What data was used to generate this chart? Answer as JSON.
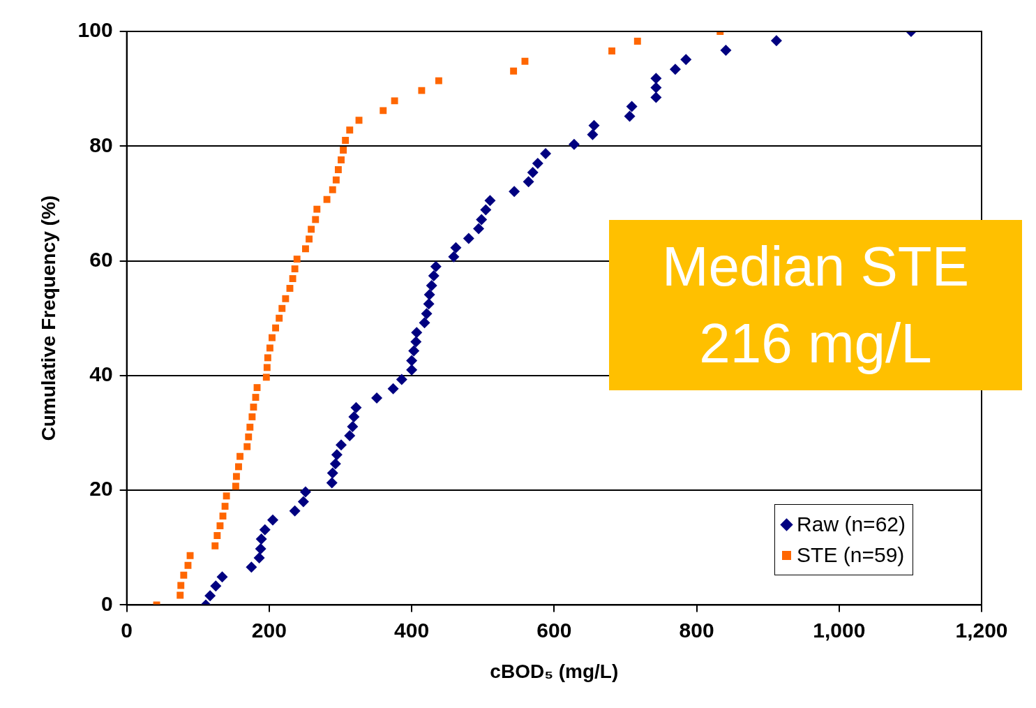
{
  "chart_data": {
    "type": "scatter",
    "xlabel": "cBOD₅ (mg/L)",
    "ylabel": "Cumulative Frequency (%)",
    "xlim": [
      0,
      1200
    ],
    "xticks": [
      0,
      200,
      400,
      600,
      800,
      {
        "value": 1000,
        "label": "1,000"
      },
      {
        "value": 1200,
        "label": "1,200"
      }
    ],
    "ylim": [
      0,
      100
    ],
    "yticks": [
      0,
      20,
      40,
      60,
      80,
      100
    ],
    "grid": "y",
    "legend": "bottom right",
    "annotations": [
      "Median STE 216 mg/L"
    ],
    "series": [
      {
        "name": "Raw (n=62)",
        "color": "#000080",
        "marker": "diamond",
        "x": [
          111,
          117,
          125,
          134,
          175,
          186,
          188,
          189,
          194,
          205,
          236,
          248,
          251,
          288,
          289,
          293,
          295,
          301,
          313,
          317,
          319,
          322,
          351,
          374,
          386,
          400,
          400,
          403,
          406,
          407,
          418,
          421,
          424,
          425,
          428,
          431,
          434,
          459,
          462,
          480,
          494,
          498,
          504,
          510,
          544,
          564,
          570,
          577,
          588,
          628,
          654,
          656,
          706,
          709,
          743,
          743,
          743,
          770,
          785,
          841,
          912,
          1101
        ],
        "values": [
          0,
          1.6,
          3.3,
          4.9,
          6.6,
          8.2,
          9.8,
          11.5,
          13.1,
          14.8,
          16.4,
          18.0,
          19.7,
          21.3,
          23.0,
          24.6,
          26.2,
          27.9,
          29.5,
          31.1,
          32.8,
          34.4,
          36.1,
          37.7,
          39.3,
          41.0,
          42.6,
          44.3,
          45.9,
          47.5,
          49.2,
          50.8,
          52.5,
          54.1,
          55.7,
          57.4,
          59.0,
          60.7,
          62.3,
          63.9,
          65.6,
          67.2,
          68.9,
          70.5,
          72.1,
          73.8,
          75.4,
          77.0,
          78.7,
          80.3,
          82.0,
          83.6,
          85.2,
          86.9,
          88.5,
          90.2,
          91.8,
          93.4,
          95.1,
          96.7,
          98.4,
          100
        ]
      },
      {
        "name": "STE (n=59)",
        "color": "#ff6600",
        "marker": "square",
        "x": [
          42,
          75,
          76,
          80,
          86,
          89,
          124,
          127,
          131,
          135,
          138,
          140,
          153,
          154,
          157,
          159,
          169,
          171,
          173,
          176,
          178,
          181,
          183,
          196,
          197,
          198,
          201,
          204,
          209,
          214,
          218,
          223,
          229,
          233,
          236,
          239,
          251,
          256,
          259,
          265,
          267,
          281,
          289,
          294,
          297,
          301,
          304,
          307,
          313,
          326,
          360,
          376,
          414,
          438,
          543,
          559,
          681,
          717,
          833
        ],
        "values": [
          0,
          1.7,
          3.4,
          5.2,
          6.9,
          8.6,
          10.3,
          12.1,
          13.8,
          15.5,
          17.2,
          19.0,
          20.7,
          22.4,
          24.1,
          25.9,
          27.6,
          29.3,
          31.0,
          32.8,
          34.5,
          36.2,
          37.9,
          39.7,
          41.4,
          43.1,
          44.8,
          46.6,
          48.3,
          50.0,
          51.7,
          53.4,
          55.2,
          56.9,
          58.6,
          60.3,
          62.1,
          63.8,
          65.5,
          67.2,
          69.0,
          70.7,
          72.4,
          74.1,
          75.9,
          77.6,
          79.3,
          81.0,
          82.8,
          84.5,
          86.2,
          87.9,
          89.7,
          91.4,
          93.1,
          94.8,
          96.6,
          98.3,
          100
        ]
      }
    ]
  }
}
